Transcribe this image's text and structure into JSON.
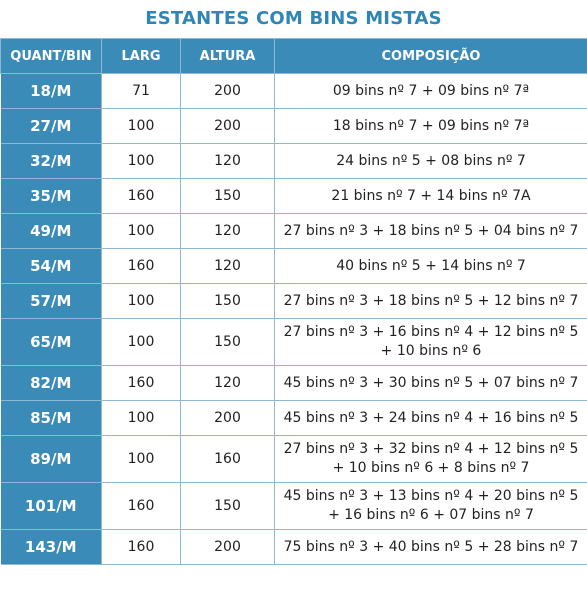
{
  "title": "ESTANTES COM BINS MISTAS",
  "headers": [
    "QUANT/BIN",
    "LARG",
    "ALTURA",
    "COMPOSIÇÃO"
  ],
  "rows": [
    {
      "quant": "18/M",
      "larg": "71",
      "altura": "200",
      "comp": [
        "09 bins nº 7 + 09 bins  nº 7ª"
      ]
    },
    {
      "quant": "27/M",
      "larg": "100",
      "altura": "200",
      "comp": [
        "18 bins nº 7 + 09 bins  nº 7ª"
      ]
    },
    {
      "quant": "32/M",
      "larg": "100",
      "altura": "120",
      "comp": [
        "24 bins nº 5 + 08 bins  nº 7"
      ]
    },
    {
      "quant": "35/M",
      "larg": "160",
      "altura": "150",
      "comp": [
        "21 bins nº 7 + 14 bins  nº 7A"
      ]
    },
    {
      "quant": "49/M",
      "larg": "100",
      "altura": "120",
      "comp": [
        "27 bins nº 3 + 18 bins nº 5 + 04 bins  nº 7"
      ]
    },
    {
      "quant": "54/M",
      "larg": "160",
      "altura": "120",
      "comp": [
        "40 bins nº 5 + 14 bins nº 7"
      ]
    },
    {
      "quant": "57/M",
      "larg": "100",
      "altura": "150",
      "comp": [
        "27 bins nº 3 + 18 bins nº 5 + 12 bins  nº 7"
      ]
    },
    {
      "quant": "65/M",
      "larg": "100",
      "altura": "150",
      "comp": [
        "27 bins nº 3 + 16 bins nº 4 + 12 bins  nº 5",
        "+ 10 bins nº 6"
      ]
    },
    {
      "quant": "82/M",
      "larg": "160",
      "altura": "120",
      "comp": [
        "45 bins nº 3 + 30 bins nº 5 + 07 bins  nº 7"
      ]
    },
    {
      "quant": "85/M",
      "larg": "100",
      "altura": "200",
      "comp": [
        "45 bins nº 3 + 24 bins nº 4 + 16 bins  nº 5"
      ]
    },
    {
      "quant": "89/M",
      "larg": "100",
      "altura": "160",
      "comp": [
        "27 bins nº 3 + 32 bins nº 4 + 12 bins  nº 5",
        "+ 10 bins nº 6 + 8 bins nº 7"
      ]
    },
    {
      "quant": "101/M",
      "larg": "160",
      "altura": "150",
      "comp": [
        "45 bins nº 3 + 13 bins nº 4 + 20 bins  nº 5",
        "+ 16 bins nº 6 + 07 bins nº 7"
      ]
    },
    {
      "quant": "143/M",
      "larg": "160",
      "altura": "200",
      "comp": [
        "75 bins nº 3 + 40 bins nº 5 + 28 bins  nº 7"
      ]
    }
  ]
}
